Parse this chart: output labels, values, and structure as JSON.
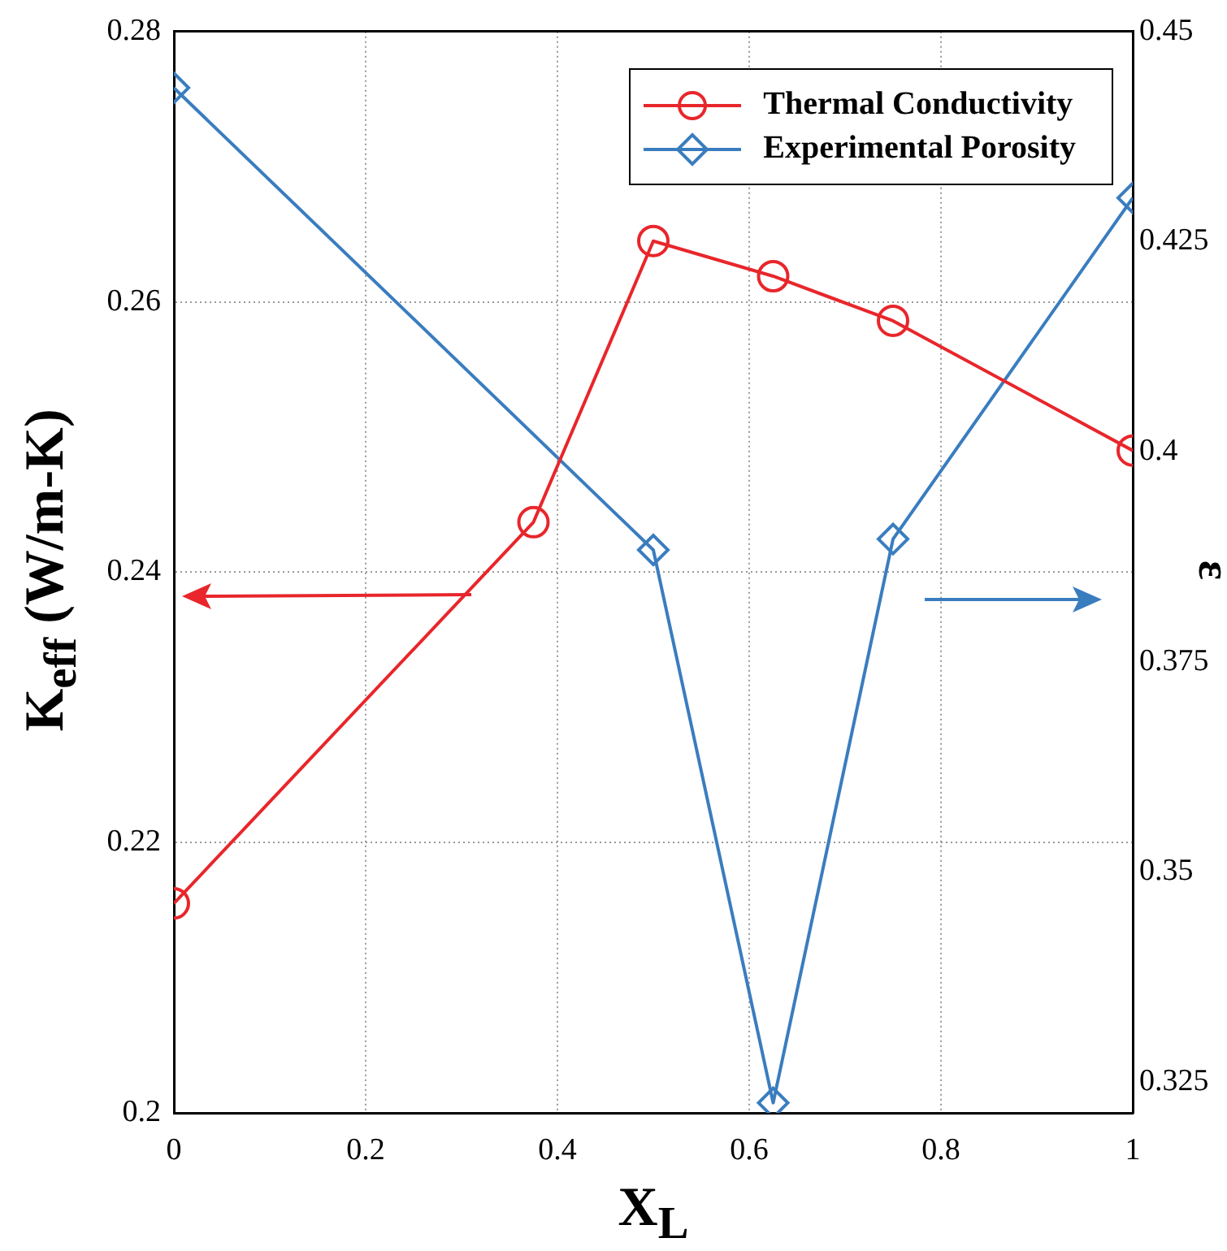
{
  "chart_data": {
    "type": "line",
    "xlabel": "X$_{L}$",
    "ylabel": "K$_{eff}$ (W/m-K)",
    "y2label": "ε",
    "xlim": [
      0,
      1
    ],
    "xticks": [
      0,
      0.2,
      0.4,
      0.6,
      0.8,
      1
    ],
    "ylim": [
      0.2,
      0.28
    ],
    "yticks": [
      0.2,
      0.22,
      0.24,
      0.26,
      0.28
    ],
    "y2lim": [
      0.3213,
      0.45
    ],
    "y2ticks": [
      0.325,
      0.35,
      0.375,
      0.4,
      0.425,
      0.45
    ],
    "grid": true,
    "legend": "top right",
    "line_style": "solid",
    "series": [
      {
        "name": "Thermal Conductivity",
        "color": "#e8262b",
        "marker": "circle",
        "x": [
          0,
          0.375,
          0.5,
          0.625,
          0.75,
          1
        ],
        "values": [
          0.2155,
          0.2437,
          0.2645,
          0.2619,
          0.2586,
          0.249
        ]
      },
      {
        "name": "Experimental Porosity",
        "color": "#3a7dbf",
        "marker": "diamond",
        "axis": "y2",
        "x": [
          0,
          0.5,
          0.625,
          0.75,
          1
        ],
        "values": [
          0.4433,
          0.3883,
          0.3225,
          0.3896,
          0.4302
        ]
      }
    ]
  }
}
